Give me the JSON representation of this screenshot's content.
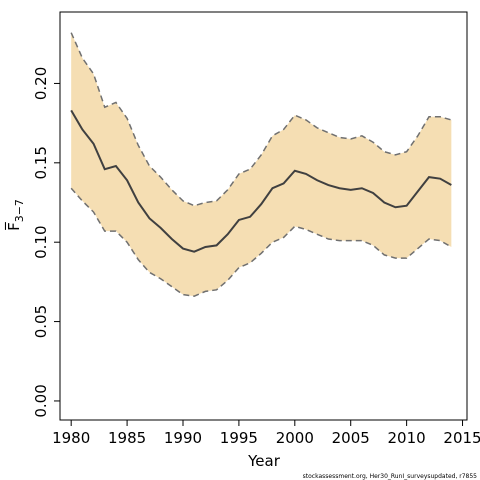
{
  "chart_data": {
    "type": "line",
    "title": "",
    "xlabel": "Year",
    "ylabel": "F̅",
    "ylabel_subscript": "3−7",
    "xlim": [
      1979,
      2015.4
    ],
    "ylim": [
      -0.012,
      0.245
    ],
    "xticks": [
      1980,
      1985,
      1990,
      1995,
      2000,
      2005,
      2010,
      2015
    ],
    "yticks": [
      0.0,
      0.05,
      0.1,
      0.15,
      0.2
    ],
    "ytick_labels": [
      "0.00",
      "0.05",
      "0.10",
      "0.15",
      "0.20"
    ],
    "grid": false,
    "colors": {
      "band": "#f5deb3",
      "line": "#404040",
      "bound": "#707070"
    },
    "x": [
      1980,
      1981,
      1982,
      1983,
      1984,
      1985,
      1986,
      1987,
      1988,
      1989,
      1990,
      1991,
      1992,
      1993,
      1994,
      1995,
      1996,
      1997,
      1998,
      1999,
      2000,
      2001,
      2002,
      2003,
      2004,
      2005,
      2006,
      2007,
      2008,
      2009,
      2010,
      2011,
      2012,
      2013,
      2014
    ],
    "series": [
      {
        "role": "estimate",
        "values": [
          0.183,
          0.171,
          0.162,
          0.146,
          0.148,
          0.139,
          0.125,
          0.115,
          0.109,
          0.102,
          0.096,
          0.094,
          0.097,
          0.098,
          0.105,
          0.114,
          0.116,
          0.124,
          0.134,
          0.137,
          0.145,
          0.143,
          0.139,
          0.136,
          0.134,
          0.133,
          0.134,
          0.131,
          0.125,
          0.122,
          0.123,
          0.132,
          0.141,
          0.14,
          0.136
        ]
      },
      {
        "role": "upper",
        "values": [
          0.232,
          0.216,
          0.206,
          0.185,
          0.188,
          0.178,
          0.161,
          0.148,
          0.141,
          0.133,
          0.126,
          0.123,
          0.125,
          0.126,
          0.133,
          0.143,
          0.146,
          0.155,
          0.167,
          0.171,
          0.18,
          0.177,
          0.172,
          0.169,
          0.166,
          0.165,
          0.167,
          0.163,
          0.157,
          0.155,
          0.157,
          0.167,
          0.179,
          0.179,
          0.177
        ]
      },
      {
        "role": "lower",
        "values": [
          0.134,
          0.126,
          0.119,
          0.107,
          0.107,
          0.1,
          0.089,
          0.081,
          0.077,
          0.072,
          0.067,
          0.066,
          0.069,
          0.07,
          0.076,
          0.084,
          0.087,
          0.093,
          0.1,
          0.103,
          0.11,
          0.108,
          0.105,
          0.102,
          0.101,
          0.101,
          0.101,
          0.098,
          0.092,
          0.09,
          0.09,
          0.096,
          0.102,
          0.101,
          0.097
        ]
      }
    ]
  },
  "footer_text": "stockassessment.org, Her30_RunI_surveysupdated, r7855"
}
